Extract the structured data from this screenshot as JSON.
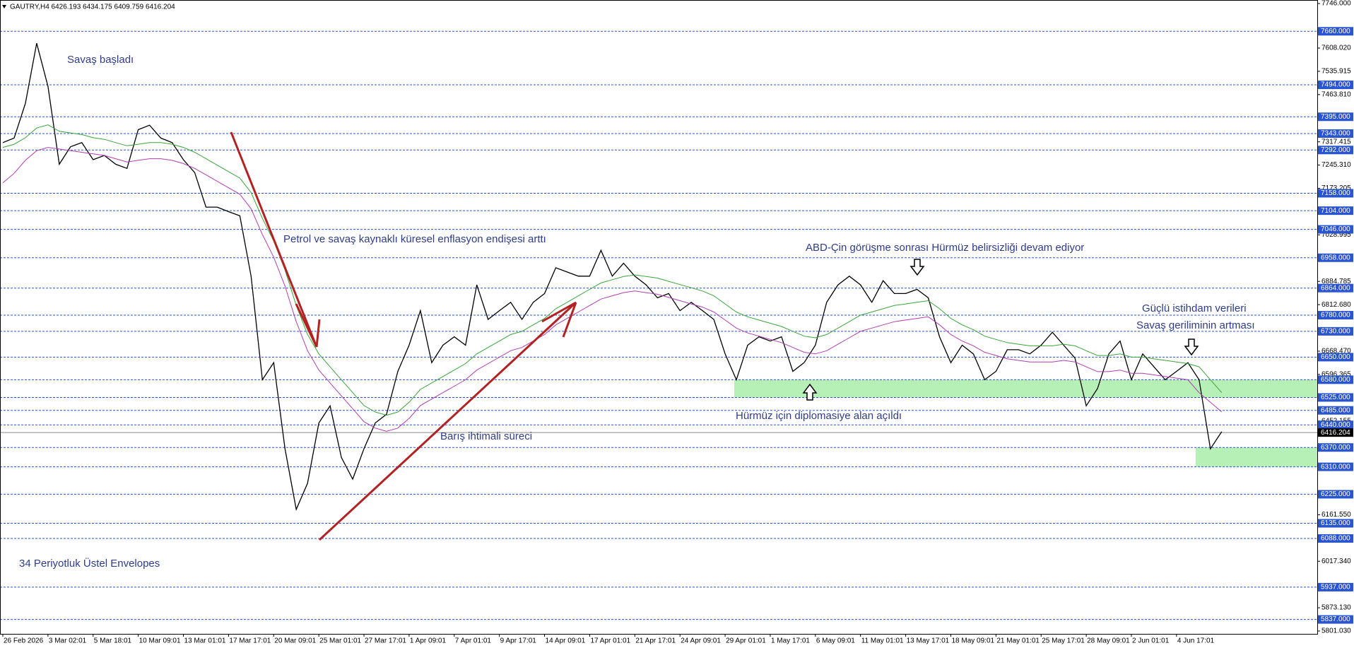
{
  "chart_data": {
    "type": "line",
    "title": "GAUTRY,H4  6426.193 6434.175 6409.759 6416.204",
    "categories": [
      "26 Feb 2026",
      null,
      null,
      null,
      "3 Mar 02:01",
      null,
      null,
      null,
      "5 Mar 18:01",
      null,
      null,
      null,
      "10 Mar 09:01",
      null,
      null,
      null,
      "13 Mar 01:01",
      null,
      null,
      null,
      "17 Mar 17:01",
      null,
      null,
      null,
      "20 Mar 09:01",
      null,
      null,
      null,
      "25 Mar 01:01",
      null,
      null,
      null,
      "27 Mar 17:01",
      null,
      null,
      null,
      "1 Apr 09:01",
      null,
      null,
      null,
      "7 Apr 01:01",
      null,
      null,
      null,
      "9 Apr 17:01",
      null,
      null,
      null,
      "14 Apr 09:01",
      null,
      null,
      null,
      "17 Apr 01:01",
      null,
      null,
      null,
      "21 Apr 17:01",
      null,
      null,
      null,
      "24 Apr 09:01",
      null,
      null,
      null,
      "29 Apr 01:01",
      null,
      null,
      null,
      "1 May 17:01",
      null,
      null,
      null,
      "6 May 09:01",
      null,
      null,
      null,
      "11 May 01:01",
      null,
      null,
      null,
      "13 May 17:01",
      null,
      null,
      null,
      "18 May 09:01",
      null,
      null,
      null,
      "21 May 01:01",
      null,
      null,
      null,
      "25 May 17:01",
      null,
      null,
      null,
      "28 May 09:01",
      null,
      null,
      null,
      "2 Jun 01:01",
      null,
      null,
      null,
      "4 Jun 17:01",
      null,
      null,
      null,
      null
    ],
    "series": [
      {
        "color": "#000000",
        "values": [
          7315,
          7329,
          7436,
          7623,
          7489,
          7248,
          7302,
          7315,
          7262,
          7275,
          7248,
          7235,
          7355,
          7369,
          7329,
          7315,
          7262,
          7222,
          7115,
          7115,
          7101,
          7088,
          6901,
          6580,
          6633,
          6366,
          6178,
          6259,
          6446,
          6499,
          6339,
          6272,
          6366,
          6446,
          6473,
          6606,
          6687,
          6794,
          6633,
          6687,
          6713,
          6687,
          6874,
          6767,
          6794,
          6820,
          6767,
          6820,
          6847,
          6927,
          6914,
          6901,
          6901,
          6981,
          6901,
          6941,
          6901,
          6874,
          6834,
          6847,
          6794,
          6820,
          6794,
          6767,
          6660,
          6580,
          6687,
          6713,
          6700,
          6713,
          6606,
          6633,
          6687,
          6820,
          6874,
          6901,
          6874,
          6820,
          6887,
          6847,
          6847,
          6860,
          6834,
          6713,
          6633,
          6687,
          6660,
          6580,
          6606,
          6673,
          6673,
          6660,
          6687,
          6727,
          6687,
          6647,
          6499,
          6553,
          6660,
          6700,
          6580,
          6660,
          6620,
          6580,
          6606,
          6633,
          6580,
          6366,
          6419
        ]
      },
      {
        "color": "#3aa53a",
        "values": [
          7300,
          7310,
          7330,
          7360,
          7370,
          7350,
          7345,
          7340,
          7330,
          7325,
          7315,
          7305,
          7310,
          7315,
          7315,
          7310,
          7300,
          7285,
          7265,
          7245,
          7225,
          7205,
          7160,
          7080,
          7010,
          6920,
          6810,
          6720,
          6660,
          6620,
          6580,
          6540,
          6500,
          6480,
          6470,
          6480,
          6510,
          6550,
          6570,
          6590,
          6610,
          6630,
          6660,
          6680,
          6700,
          6720,
          6730,
          6750,
          6770,
          6800,
          6820,
          6840,
          6860,
          6880,
          6890,
          6900,
          6905,
          6900,
          6895,
          6885,
          6875,
          6865,
          6855,
          6840,
          6815,
          6790,
          6775,
          6765,
          6755,
          6745,
          6730,
          6715,
          6710,
          6720,
          6740,
          6760,
          6780,
          6790,
          6800,
          6810,
          6815,
          6820,
          6825,
          6800,
          6770,
          6750,
          6735,
          6715,
          6705,
          6695,
          6690,
          6685,
          6685,
          6685,
          6690,
          6685,
          6670,
          6655,
          6655,
          6660,
          6650,
          6650,
          6645,
          6640,
          6635,
          6630,
          6620,
          6580,
          6540
        ]
      },
      {
        "color": "#b03fb0",
        "values": [
          7190,
          7220,
          7260,
          7290,
          7300,
          7295,
          7290,
          7285,
          7280,
          7275,
          7265,
          7255,
          7260,
          7265,
          7265,
          7260,
          7250,
          7235,
          7215,
          7195,
          7175,
          7155,
          7110,
          7030,
          6960,
          6870,
          6760,
          6670,
          6610,
          6570,
          6530,
          6490,
          6450,
          6430,
          6420,
          6430,
          6460,
          6500,
          6520,
          6540,
          6560,
          6580,
          6610,
          6630,
          6650,
          6670,
          6680,
          6700,
          6720,
          6750,
          6770,
          6790,
          6810,
          6830,
          6840,
          6850,
          6855,
          6850,
          6845,
          6835,
          6825,
          6815,
          6805,
          6790,
          6765,
          6740,
          6725,
          6715,
          6705,
          6695,
          6680,
          6665,
          6660,
          6670,
          6690,
          6710,
          6730,
          6740,
          6750,
          6760,
          6765,
          6770,
          6775,
          6750,
          6720,
          6700,
          6685,
          6665,
          6655,
          6645,
          6640,
          6635,
          6635,
          6635,
          6640,
          6635,
          6620,
          6605,
          6605,
          6610,
          6600,
          6600,
          6595,
          6590,
          6585,
          6580,
          6540,
          6510,
          6480
        ]
      }
    ],
    "ylim": [
      5801.03,
      7746
    ],
    "yticks": [
      {
        "value": 7746,
        "label": "7746.000"
      },
      {
        "value": 7608.02,
        "label": "7608.020"
      },
      {
        "value": 7535.915,
        "label": "7535.915"
      },
      {
        "value": 7463.81,
        "label": "7463.810"
      },
      {
        "value": 7317.415,
        "label": "7317.415"
      },
      {
        "value": 7245.31,
        "label": "7245.310"
      },
      {
        "value": 7173.205,
        "label": "7173.205"
      },
      {
        "value": 7028.995,
        "label": "7028.995"
      },
      {
        "value": 6884.785,
        "label": "6884.785"
      },
      {
        "value": 6812.68,
        "label": "6812.680"
      },
      {
        "value": 6668.47,
        "label": "6668.470"
      },
      {
        "value": 6596.365,
        "label": "6596.365"
      },
      {
        "value": 6452.155,
        "label": "6452.155"
      },
      {
        "value": 6161.55,
        "label": "6161.550"
      },
      {
        "value": 6017.34,
        "label": "6017.340"
      },
      {
        "value": 5873.13,
        "label": "5873.130"
      },
      {
        "value": 5801.03,
        "label": "5801.030"
      }
    ],
    "levels": [
      {
        "value": 7660,
        "label": "7660.000"
      },
      {
        "value": 7494,
        "label": "7494.000"
      },
      {
        "value": 7395,
        "label": "7395.000"
      },
      {
        "value": 7343,
        "label": "7343.000"
      },
      {
        "value": 7292,
        "label": "7292.000"
      },
      {
        "value": 7158,
        "label": "7158.000"
      },
      {
        "value": 7104,
        "label": "7104.000"
      },
      {
        "value": 7046,
        "label": "7046.000"
      },
      {
        "value": 6958,
        "label": "6958.000"
      },
      {
        "value": 6864,
        "label": "6864.000"
      },
      {
        "value": 6780,
        "label": "6780.000"
      },
      {
        "value": 6730,
        "label": "6730.000"
      },
      {
        "value": 6650,
        "label": "6650.000"
      },
      {
        "value": 6580,
        "label": "6580.000"
      },
      {
        "value": 6525,
        "label": "6525.000"
      },
      {
        "value": 6485,
        "label": "6485.000"
      },
      {
        "value": 6440,
        "label": "6440.000"
      },
      {
        "value": 6370,
        "label": "6370.000"
      },
      {
        "value": 6310,
        "label": "6310.000"
      },
      {
        "value": 6225,
        "label": "6225.000"
      },
      {
        "value": 6135,
        "label": "6135.000"
      },
      {
        "value": 6088,
        "label": "6088.000"
      },
      {
        "value": 5937,
        "label": "5937.000"
      },
      {
        "value": 5837,
        "label": "5837.000"
      }
    ],
    "level_color": "#2a55d0",
    "last_price": {
      "value": 6416.204,
      "label": "6416.204"
    },
    "zones": [
      {
        "low": 6525,
        "high": 6580
      },
      {
        "low": 6310,
        "high": 6370
      }
    ],
    "zone_color": "#b6f0b6",
    "annotations": [
      "Savaş başladı",
      "Petrol ve savaş kaynaklı küresel enflasyon endişesi arttı",
      "Barış ihtimali süreci",
      "ABD-Çin görüşme sonrası Hürmüz belirsizliği devam ediyor",
      "Güçlü istihdam verileri",
      "Savaş geriliminin artması",
      "Hürmüz için diplomasiye alan açıldı",
      "34 Periyotluk Üstel Envelopes"
    ]
  }
}
